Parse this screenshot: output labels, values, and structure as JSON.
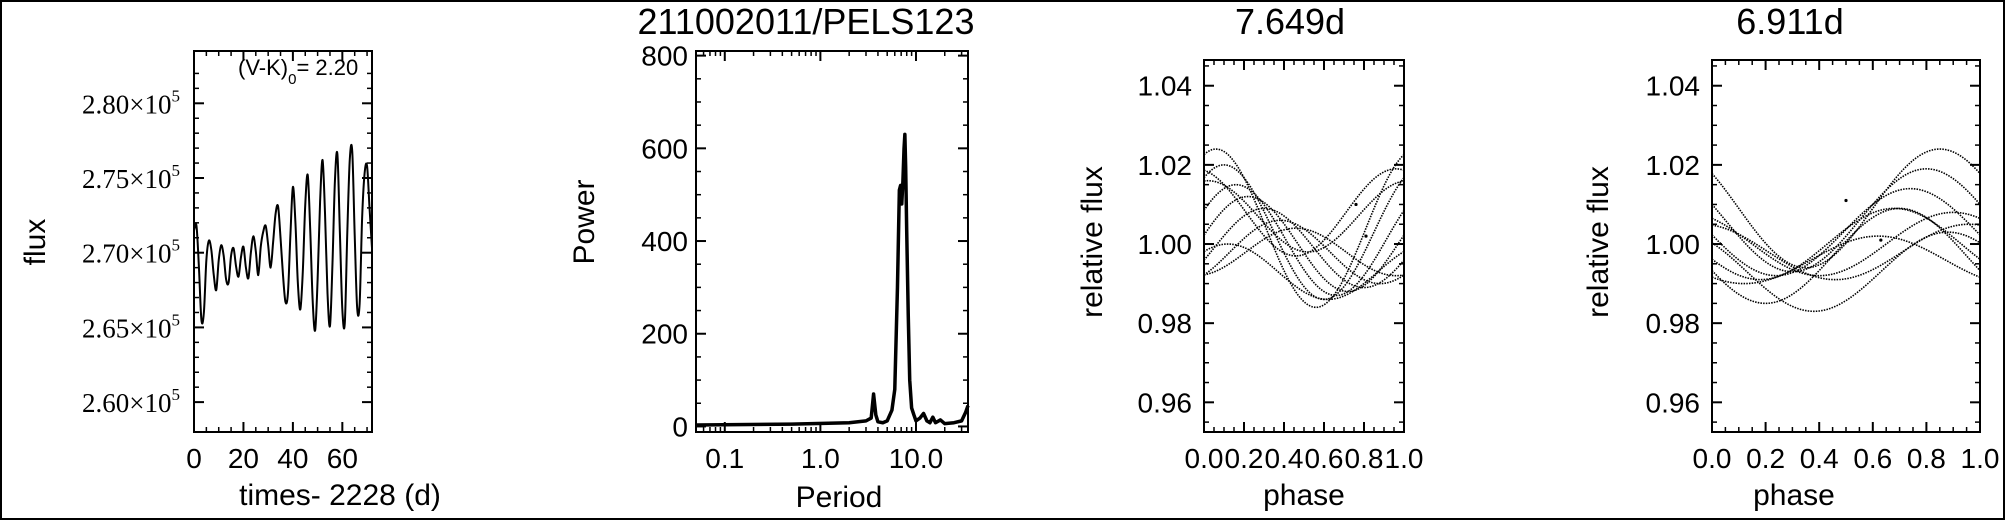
{
  "figure": {
    "title": "211002011/PELS123"
  },
  "chart_data": [
    {
      "id": "lightcurve",
      "type": "line",
      "xlabel": "times- 2228 (d)",
      "ylabel": "flux",
      "xlim": [
        0,
        72
      ],
      "ylim": [
        258000,
        283500
      ],
      "x_ticks": [
        "0",
        "20",
        "40",
        "60"
      ],
      "x_tick_values": [
        0,
        20,
        40,
        60
      ],
      "y_tick_mantissas": [
        "2.60×10",
        "2.65×10",
        "2.70×10",
        "2.75×10",
        "2.80×10"
      ],
      "y_tick_exponent": "5",
      "y_tick_values": [
        260000,
        265000,
        270000,
        275000,
        280000
      ],
      "annotation": {
        "prefix": "(V-K)",
        "subscript": "0",
        "suffix": "= 2.20"
      },
      "series": [
        {
          "x": [
            0,
            1,
            2,
            3,
            4,
            5,
            6,
            7,
            8,
            9,
            10,
            11,
            12,
            13,
            14,
            15,
            16,
            17,
            18,
            19,
            20,
            21,
            22,
            23,
            24,
            25,
            26,
            27,
            28,
            29,
            30,
            31,
            32,
            33,
            34,
            35,
            36,
            37,
            38,
            39,
            40,
            41,
            42,
            43,
            44,
            45,
            46,
            47,
            48,
            49,
            50,
            51,
            52,
            53,
            54,
            55,
            56,
            57,
            58,
            59,
            60,
            61,
            62,
            63,
            64,
            65,
            66,
            67,
            68,
            69,
            70,
            71,
            72
          ],
          "y": [
            271500,
            271800,
            269000,
            265500,
            266000,
            269500,
            270800,
            270200,
            268500,
            267500,
            269500,
            270500,
            269800,
            268200,
            268000,
            269800,
            270300,
            269100,
            268400,
            269700,
            270400,
            269000,
            268300,
            270000,
            271100,
            270100,
            268500,
            270400,
            271400,
            271800,
            270500,
            269000,
            270700,
            272600,
            273100,
            271000,
            268500,
            266700,
            267300,
            271200,
            274400,
            272100,
            268000,
            266200,
            268700,
            273200,
            275200,
            271600,
            266800,
            264800,
            268200,
            273400,
            276200,
            272600,
            267300,
            265100,
            269200,
            274800,
            276600,
            271400,
            266200,
            265300,
            271300,
            276200,
            276800,
            271200,
            266300,
            266600,
            272300,
            275300,
            275800,
            273000,
            270300
          ]
        }
      ]
    },
    {
      "id": "periodogram",
      "type": "line",
      "xlabel": "Period",
      "ylabel": "Power",
      "xscale": "log",
      "xlim": [
        0.05,
        35
      ],
      "ylim": [
        -12,
        810
      ],
      "x_ticks": [
        "0.1",
        "1.0",
        "10.0"
      ],
      "x_tick_values": [
        0.1,
        1.0,
        10.0
      ],
      "y_ticks": [
        "0",
        "200",
        "400",
        "600",
        "800"
      ],
      "y_tick_values": [
        0,
        200,
        400,
        600,
        800
      ],
      "series": [
        {
          "x": [
            0.05,
            0.5,
            2.0,
            3.0,
            3.4,
            3.6,
            3.8,
            4.0,
            4.5,
            5.0,
            5.6,
            6.0,
            6.4,
            6.7,
            6.9,
            7.1,
            7.3,
            7.5,
            7.65,
            7.8,
            8.0,
            8.3,
            8.6,
            9.0,
            9.5,
            10.0,
            11.0,
            12.0,
            13.0,
            14.0,
            15.0,
            16.0,
            18.0,
            20.0,
            25.0,
            30.0,
            33.0,
            35.0
          ],
          "y": [
            3,
            5,
            8,
            12,
            18,
            70,
            25,
            10,
            8,
            12,
            35,
            80,
            300,
            510,
            520,
            480,
            530,
            600,
            630,
            560,
            420,
            240,
            100,
            40,
            25,
            12,
            18,
            28,
            12,
            8,
            20,
            8,
            14,
            6,
            8,
            12,
            30,
            45
          ]
        }
      ]
    },
    {
      "id": "phase1",
      "type": "scatter",
      "title": "7.649d",
      "xlabel": "phase",
      "ylabel": "relative flux",
      "xlim": [
        0,
        1
      ],
      "ylim": [
        0.9525,
        1.0465
      ],
      "x_ticks": [
        "0.0",
        "0.2",
        "0.4",
        "0.6",
        "0.8",
        "1.0"
      ],
      "x_tick_values": [
        0,
        0.2,
        0.4,
        0.6,
        0.8,
        1.0
      ],
      "y_ticks": [
        "0.96",
        "0.98",
        "1.00",
        "1.02",
        "1.04"
      ],
      "y_tick_values": [
        0.96,
        0.98,
        1.0,
        1.02,
        1.04
      ],
      "curves": [
        {
          "amp": 0.02,
          "phase": 0.06,
          "offset": 1.004
        },
        {
          "amp": 0.017,
          "phase": 0.1,
          "offset": 1.003
        },
        {
          "amp": 0.014,
          "phase": 0.16,
          "offset": 1.001
        },
        {
          "amp": 0.012,
          "phase": 0.22,
          "offset": 1.0
        },
        {
          "amp": 0.01,
          "phase": 0.3,
          "offset": 0.999
        },
        {
          "amp": 0.008,
          "phase": 0.38,
          "offset": 0.998
        },
        {
          "amp": 0.006,
          "phase": 0.46,
          "offset": 0.998
        },
        {
          "amp": 0.009,
          "phase": 0.02,
          "offset": 1.007
        },
        {
          "amp": 0.011,
          "phase": 0.96,
          "offset": 1.008
        },
        {
          "amp": 0.007,
          "phase": 0.12,
          "offset": 0.993
        }
      ],
      "outliers": [
        {
          "x": 0.76,
          "y": 1.01
        },
        {
          "x": 0.81,
          "y": 1.002
        }
      ]
    },
    {
      "id": "phase2",
      "type": "scatter",
      "title": "6.911d",
      "xlabel": "phase",
      "ylabel": "relative flux",
      "xlim": [
        0,
        1
      ],
      "ylim": [
        0.9525,
        1.0465
      ],
      "x_ticks": [
        "0.0",
        "0.2",
        "0.4",
        "0.6",
        "0.8",
        "1.0"
      ],
      "x_tick_values": [
        0,
        0.2,
        0.4,
        0.6,
        0.8,
        1.0
      ],
      "y_ticks": [
        "0.96",
        "0.98",
        "1.00",
        "1.02",
        "1.04"
      ],
      "y_tick_values": [
        0.96,
        0.98,
        1.0,
        1.02,
        1.04
      ],
      "curves": [
        {
          "amp": 0.015,
          "phase": 0.85,
          "offset": 1.009
        },
        {
          "amp": 0.013,
          "phase": 0.8,
          "offset": 1.006
        },
        {
          "amp": 0.011,
          "phase": 0.74,
          "offset": 1.003
        },
        {
          "amp": 0.009,
          "phase": 0.68,
          "offset": 1.0
        },
        {
          "amp": 0.008,
          "phase": 0.9,
          "offset": 1.0
        },
        {
          "amp": 0.007,
          "phase": 0.96,
          "offset": 0.998
        },
        {
          "amp": 0.006,
          "phase": 0.62,
          "offset": 0.996
        },
        {
          "amp": 0.01,
          "phase": 0.88,
          "offset": 0.993
        },
        {
          "amp": 0.012,
          "phase": 0.7,
          "offset": 0.997
        }
      ],
      "outliers": [
        {
          "x": 0.5,
          "y": 1.011
        },
        {
          "x": 0.63,
          "y": 1.001
        }
      ]
    }
  ]
}
